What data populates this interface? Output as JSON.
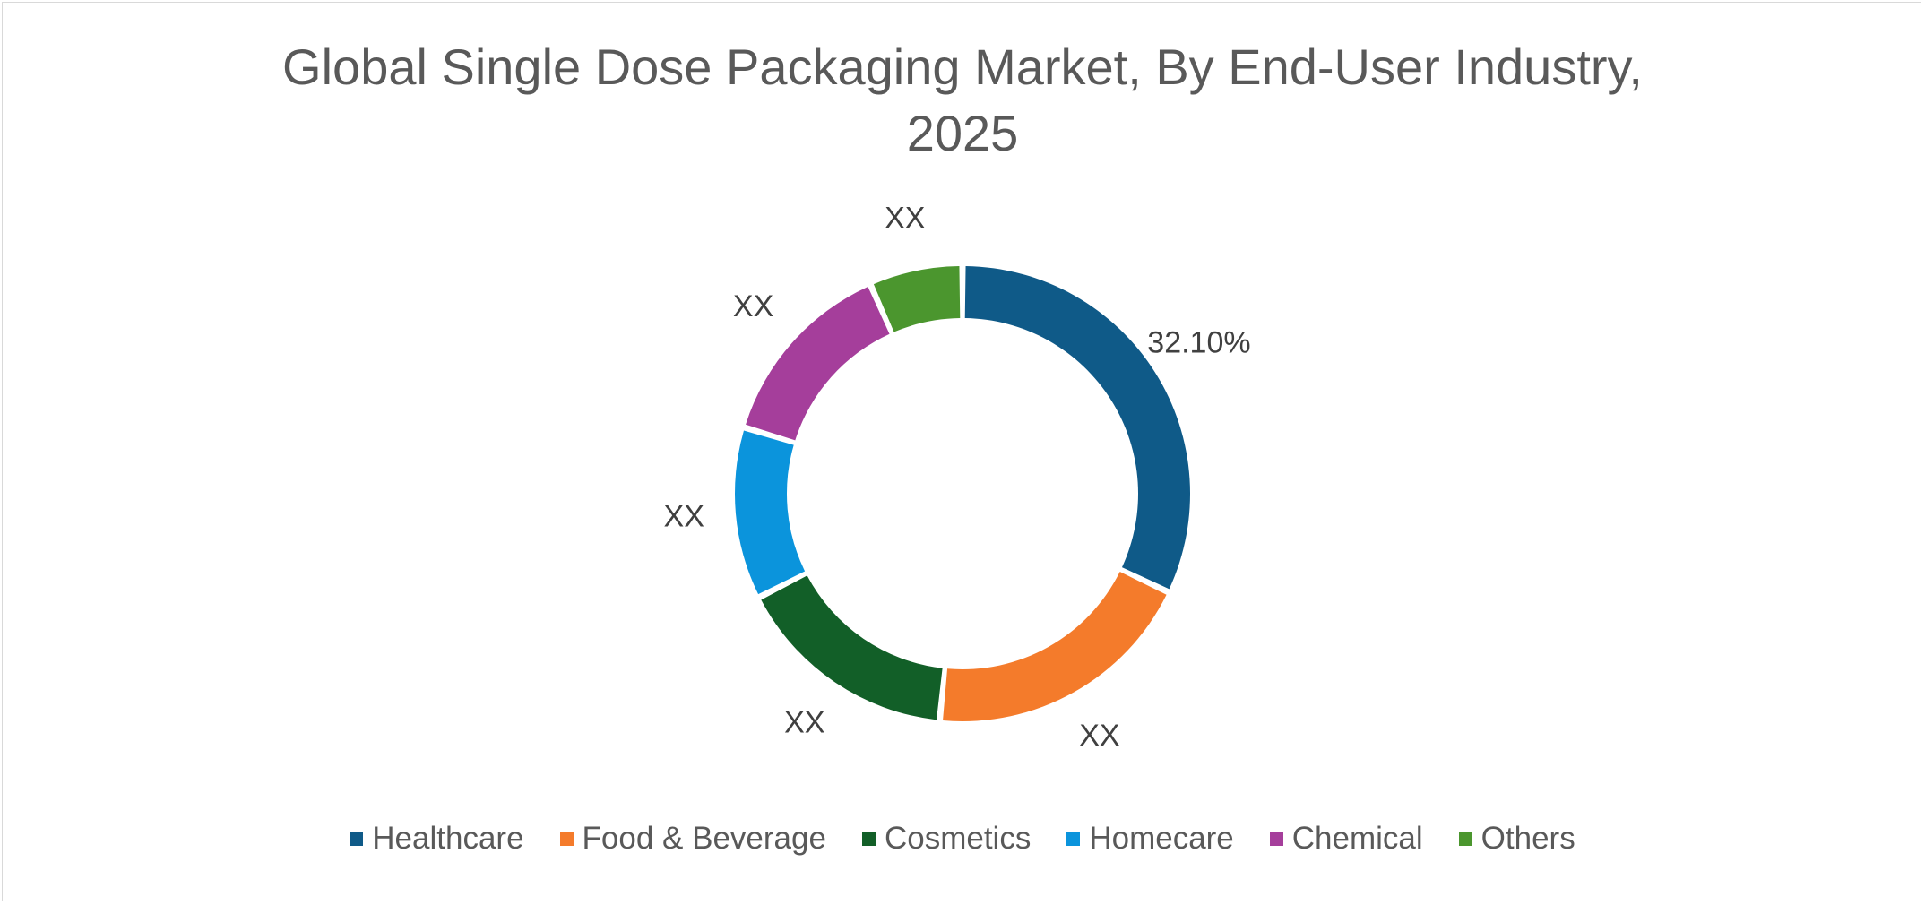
{
  "chart_data": {
    "type": "pie",
    "subtype": "donut",
    "title_lines": [
      "Global Single Dose Packaging Market, By End-User Industry,",
      "2025"
    ],
    "categories": [
      "Healthcare",
      "Food & Beverage",
      "Cosmetics",
      "Homecare",
      "Chemical",
      "Others"
    ],
    "values": [
      32.1,
      19.5,
      15.9,
      12.2,
      13.7,
      6.6
    ],
    "data_labels": [
      "32.10%",
      "XX",
      "XX",
      "XX",
      "XX",
      "XX"
    ],
    "colors": [
      "#0F5A88",
      "#F47B2B",
      "#125F28",
      "#0B94DC",
      "#A53E9B",
      "#4B962E"
    ],
    "legend_position": "bottom",
    "grid": false
  }
}
